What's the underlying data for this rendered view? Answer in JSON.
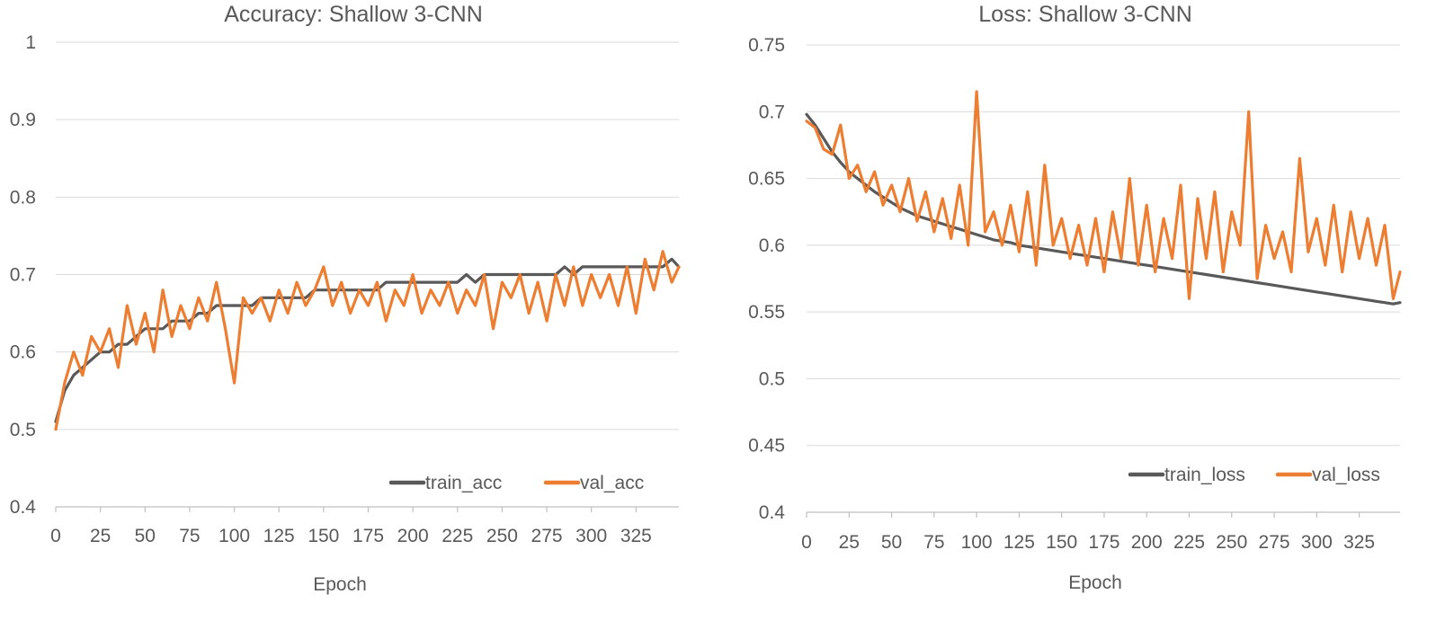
{
  "colors": {
    "train": "#595959",
    "val": "#ED7D31",
    "grid": "#D9D9D9",
    "text": "#595959"
  },
  "chart_data": [
    {
      "type": "line",
      "title": "Accuracy:  Shallow 3-CNN",
      "xlabel": "Epoch",
      "ylabel": "",
      "xlim": [
        0,
        349
      ],
      "ylim": [
        0.4,
        1.0
      ],
      "yticks": [
        "0.4",
        "0.5",
        "0.6",
        "0.7",
        "0.8",
        "0.9",
        "1"
      ],
      "xticks": [
        "0",
        "25",
        "50",
        "75",
        "100",
        "125",
        "150",
        "175",
        "200",
        "225",
        "250",
        "275",
        "300",
        "325"
      ],
      "grid": "horizontal",
      "legend": "bottom-right",
      "series": [
        {
          "name": "train_acc",
          "x": [
            0,
            5,
            10,
            15,
            20,
            25,
            30,
            35,
            40,
            45,
            50,
            55,
            60,
            65,
            70,
            75,
            80,
            85,
            90,
            95,
            100,
            105,
            110,
            115,
            120,
            125,
            130,
            135,
            140,
            145,
            150,
            155,
            160,
            165,
            170,
            175,
            180,
            185,
            190,
            195,
            200,
            205,
            210,
            215,
            220,
            225,
            230,
            235,
            240,
            245,
            250,
            255,
            260,
            265,
            270,
            275,
            280,
            285,
            290,
            295,
            300,
            305,
            310,
            315,
            320,
            325,
            330,
            335,
            340,
            345,
            349
          ],
          "y": [
            0.51,
            0.55,
            0.57,
            0.58,
            0.59,
            0.6,
            0.6,
            0.61,
            0.61,
            0.62,
            0.63,
            0.63,
            0.63,
            0.64,
            0.64,
            0.64,
            0.65,
            0.65,
            0.66,
            0.66,
            0.66,
            0.66,
            0.66,
            0.67,
            0.67,
            0.67,
            0.67,
            0.67,
            0.67,
            0.68,
            0.68,
            0.68,
            0.68,
            0.68,
            0.68,
            0.68,
            0.68,
            0.69,
            0.69,
            0.69,
            0.69,
            0.69,
            0.69,
            0.69,
            0.69,
            0.69,
            0.7,
            0.69,
            0.7,
            0.7,
            0.7,
            0.7,
            0.7,
            0.7,
            0.7,
            0.7,
            0.7,
            0.71,
            0.7,
            0.71,
            0.71,
            0.71,
            0.71,
            0.71,
            0.71,
            0.71,
            0.71,
            0.71,
            0.71,
            0.72,
            0.71
          ]
        },
        {
          "name": "val_acc",
          "x": [
            0,
            5,
            10,
            15,
            20,
            25,
            30,
            35,
            40,
            45,
            50,
            55,
            60,
            65,
            70,
            75,
            80,
            85,
            90,
            95,
            100,
            105,
            110,
            115,
            120,
            125,
            130,
            135,
            140,
            145,
            150,
            155,
            160,
            165,
            170,
            175,
            180,
            185,
            190,
            195,
            200,
            205,
            210,
            215,
            220,
            225,
            230,
            235,
            240,
            245,
            250,
            255,
            260,
            265,
            270,
            275,
            280,
            285,
            290,
            295,
            300,
            305,
            310,
            315,
            320,
            325,
            330,
            335,
            340,
            345,
            349
          ],
          "y": [
            0.5,
            0.56,
            0.6,
            0.57,
            0.62,
            0.6,
            0.63,
            0.58,
            0.66,
            0.61,
            0.65,
            0.6,
            0.68,
            0.62,
            0.66,
            0.63,
            0.67,
            0.64,
            0.69,
            0.63,
            0.56,
            0.67,
            0.65,
            0.67,
            0.64,
            0.68,
            0.65,
            0.69,
            0.66,
            0.68,
            0.71,
            0.66,
            0.69,
            0.65,
            0.68,
            0.66,
            0.69,
            0.64,
            0.68,
            0.66,
            0.7,
            0.65,
            0.68,
            0.66,
            0.69,
            0.65,
            0.68,
            0.66,
            0.7,
            0.63,
            0.69,
            0.67,
            0.7,
            0.65,
            0.69,
            0.64,
            0.7,
            0.66,
            0.71,
            0.66,
            0.7,
            0.67,
            0.7,
            0.66,
            0.71,
            0.65,
            0.72,
            0.68,
            0.73,
            0.69,
            0.71
          ]
        }
      ]
    },
    {
      "type": "line",
      "title": "Loss:  Shallow 3-CNN",
      "xlabel": "Epoch",
      "ylabel": "",
      "xlim": [
        0,
        349
      ],
      "ylim": [
        0.4,
        0.75
      ],
      "yticks": [
        "0.4",
        "0.45",
        "0.5",
        "0.55",
        "0.6",
        "0.65",
        "0.7",
        "0.75"
      ],
      "xticks": [
        "0",
        "25",
        "50",
        "75",
        "100",
        "125",
        "150",
        "175",
        "200",
        "225",
        "250",
        "275",
        "300",
        "325"
      ],
      "grid": "horizontal",
      "legend": "bottom-right",
      "series": [
        {
          "name": "train_loss",
          "x": [
            0,
            5,
            10,
            15,
            20,
            25,
            30,
            35,
            40,
            45,
            50,
            55,
            60,
            65,
            70,
            75,
            80,
            85,
            90,
            95,
            100,
            105,
            110,
            115,
            120,
            125,
            130,
            135,
            140,
            145,
            150,
            155,
            160,
            165,
            170,
            175,
            180,
            185,
            190,
            195,
            200,
            205,
            210,
            215,
            220,
            225,
            230,
            235,
            240,
            245,
            250,
            255,
            260,
            265,
            270,
            275,
            280,
            285,
            290,
            295,
            300,
            305,
            310,
            315,
            320,
            325,
            330,
            335,
            340,
            345,
            349
          ],
          "y": [
            0.698,
            0.69,
            0.68,
            0.67,
            0.662,
            0.655,
            0.65,
            0.645,
            0.64,
            0.636,
            0.632,
            0.628,
            0.625,
            0.622,
            0.62,
            0.618,
            0.616,
            0.614,
            0.612,
            0.61,
            0.608,
            0.606,
            0.604,
            0.603,
            0.602,
            0.6,
            0.599,
            0.598,
            0.597,
            0.596,
            0.595,
            0.594,
            0.593,
            0.592,
            0.591,
            0.59,
            0.589,
            0.588,
            0.587,
            0.586,
            0.585,
            0.584,
            0.583,
            0.582,
            0.581,
            0.58,
            0.579,
            0.578,
            0.577,
            0.576,
            0.575,
            0.574,
            0.573,
            0.572,
            0.571,
            0.57,
            0.569,
            0.568,
            0.567,
            0.566,
            0.565,
            0.564,
            0.563,
            0.562,
            0.561,
            0.56,
            0.559,
            0.558,
            0.557,
            0.556,
            0.557
          ]
        },
        {
          "name": "val_loss",
          "x": [
            0,
            5,
            10,
            15,
            20,
            25,
            30,
            35,
            40,
            45,
            50,
            55,
            60,
            65,
            70,
            75,
            80,
            85,
            90,
            95,
            100,
            105,
            110,
            115,
            120,
            125,
            130,
            135,
            140,
            145,
            150,
            155,
            160,
            165,
            170,
            175,
            180,
            185,
            190,
            195,
            200,
            205,
            210,
            215,
            220,
            225,
            230,
            235,
            240,
            245,
            250,
            255,
            260,
            265,
            270,
            275,
            280,
            285,
            290,
            295,
            300,
            305,
            310,
            315,
            320,
            325,
            330,
            335,
            340,
            345,
            349
          ],
          "y": [
            0.693,
            0.688,
            0.672,
            0.668,
            0.69,
            0.65,
            0.66,
            0.64,
            0.655,
            0.63,
            0.645,
            0.625,
            0.65,
            0.618,
            0.64,
            0.61,
            0.635,
            0.605,
            0.645,
            0.6,
            0.715,
            0.61,
            0.625,
            0.6,
            0.63,
            0.595,
            0.64,
            0.585,
            0.66,
            0.6,
            0.62,
            0.59,
            0.615,
            0.585,
            0.62,
            0.58,
            0.625,
            0.59,
            0.65,
            0.585,
            0.63,
            0.58,
            0.62,
            0.59,
            0.645,
            0.56,
            0.635,
            0.59,
            0.64,
            0.58,
            0.625,
            0.6,
            0.7,
            0.575,
            0.615,
            0.59,
            0.61,
            0.58,
            0.665,
            0.595,
            0.62,
            0.585,
            0.63,
            0.58,
            0.625,
            0.59,
            0.62,
            0.585,
            0.615,
            0.56,
            0.58
          ]
        }
      ]
    }
  ]
}
